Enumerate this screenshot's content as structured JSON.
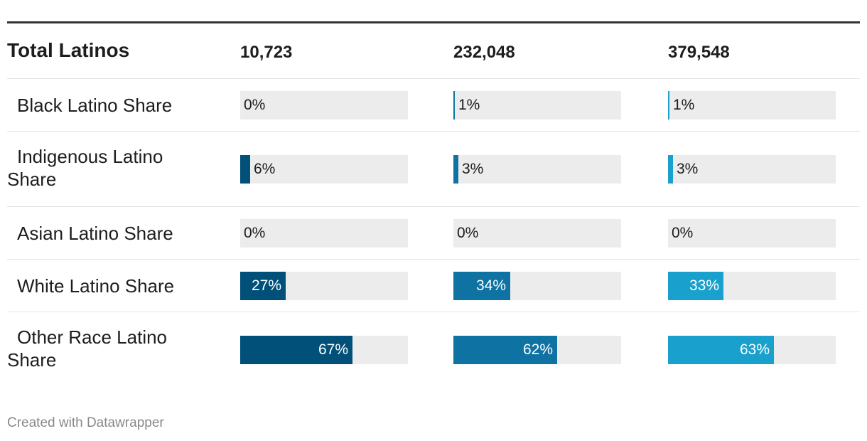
{
  "chart_data": {
    "type": "table",
    "header": {
      "label": "Total Latinos",
      "values": [
        "10,723",
        "232,048",
        "379,548"
      ]
    },
    "column_colors": [
      "#00507a",
      "#0e73a3",
      "#19a0cd"
    ],
    "xlim": [
      0,
      100
    ],
    "rows": [
      {
        "label": "Black Latino Share",
        "values": [
          0,
          1,
          1
        ],
        "value_labels": [
          "0%",
          "1%",
          "1%"
        ]
      },
      {
        "label": "Indigenous Latino Share",
        "values": [
          6,
          3,
          3
        ],
        "value_labels": [
          "6%",
          "3%",
          "3%"
        ]
      },
      {
        "label": "Asian Latino Share",
        "values": [
          0,
          0,
          0
        ],
        "value_labels": [
          "0%",
          "0%",
          "0%"
        ]
      },
      {
        "label": "White Latino Share",
        "values": [
          27,
          34,
          33
        ],
        "value_labels": [
          "27%",
          "34%",
          "33%"
        ]
      },
      {
        "label": "Other Race Latino Share",
        "values": [
          67,
          62,
          63
        ],
        "value_labels": [
          "67%",
          "62%",
          "63%"
        ]
      }
    ]
  },
  "footer": "Created with Datawrapper"
}
